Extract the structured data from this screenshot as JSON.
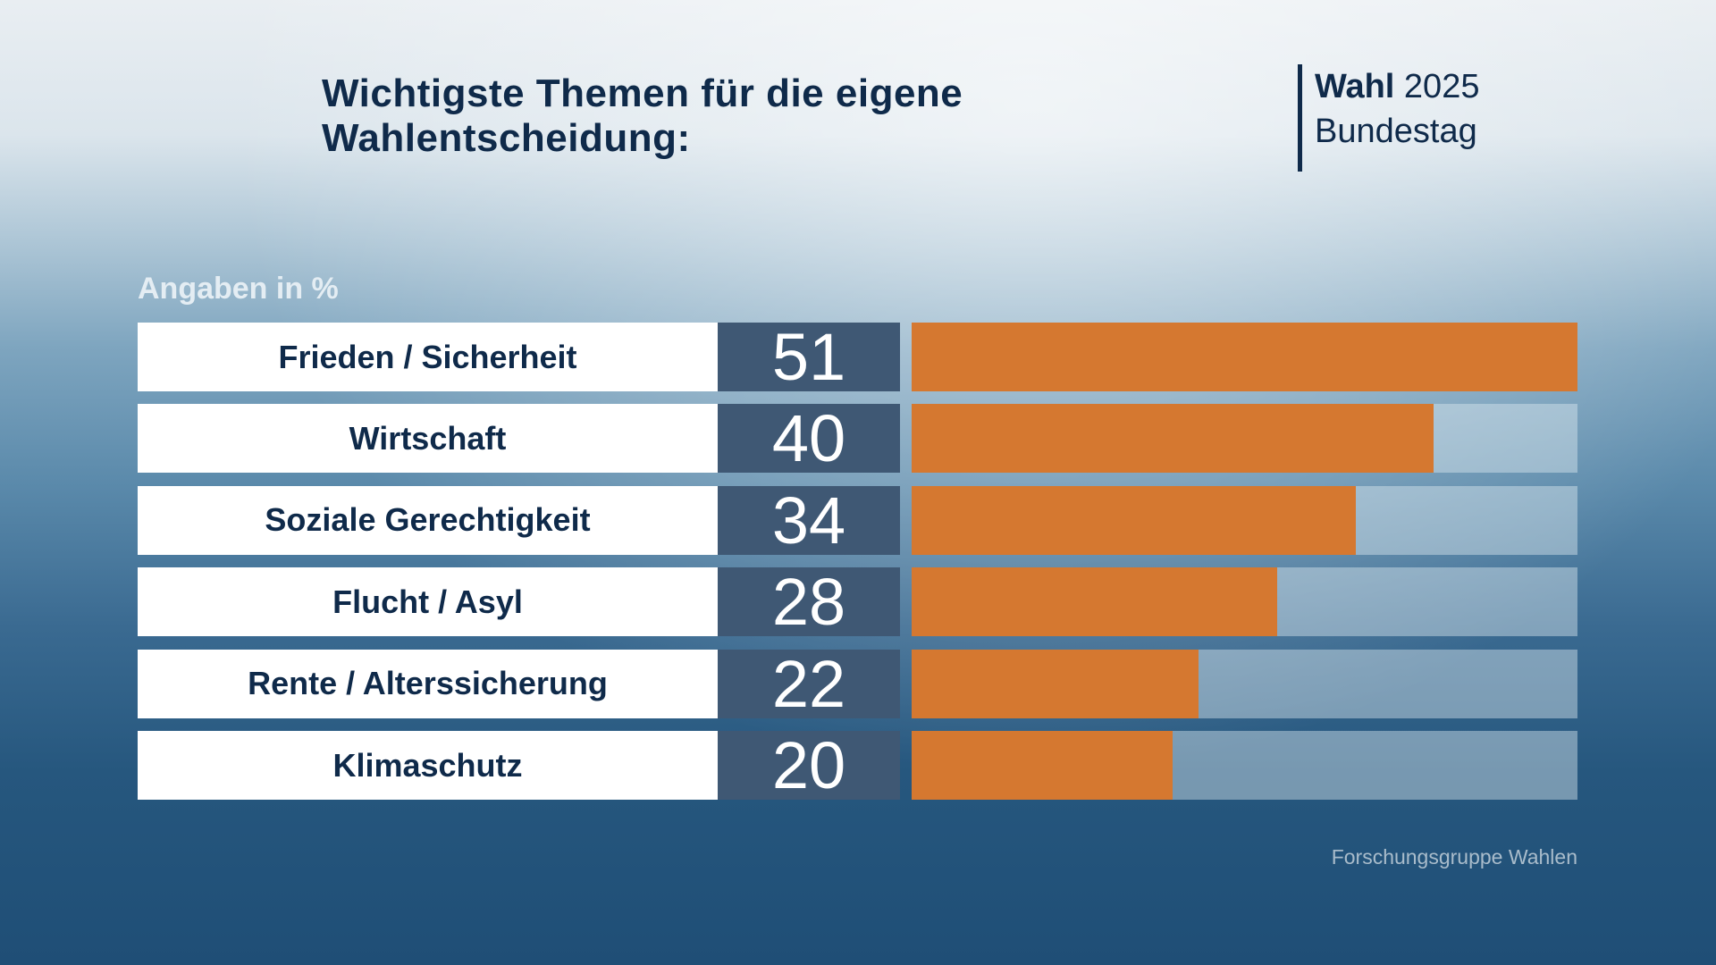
{
  "header": {
    "title_line1": "Wichtigste Themen für die eigene",
    "title_line2": "Wahlentscheidung:",
    "brand_bold": "Wahl",
    "brand_year": "2025",
    "brand_sub": "Bundestag"
  },
  "chart_data": {
    "type": "bar",
    "orientation": "horizontal",
    "title": "Wichtigste Themen für die eigene Wahlentscheidung:",
    "unit_label": "Angaben in %",
    "categories": [
      "Frieden / Sicherheit",
      "Wirtschaft",
      "Soziale Gerechtigkeit",
      "Flucht / Asyl",
      "Rente / Alterssicherung",
      "Klimaschutz"
    ],
    "values": [
      51,
      40,
      34,
      28,
      22,
      20
    ],
    "value_labels": [
      "51",
      "40",
      "34",
      "28",
      "22",
      "20"
    ],
    "xlim": [
      0,
      51
    ],
    "grid": false,
    "bar_color": "#d57830",
    "source": "Forschungsgruppe Wahlen"
  }
}
